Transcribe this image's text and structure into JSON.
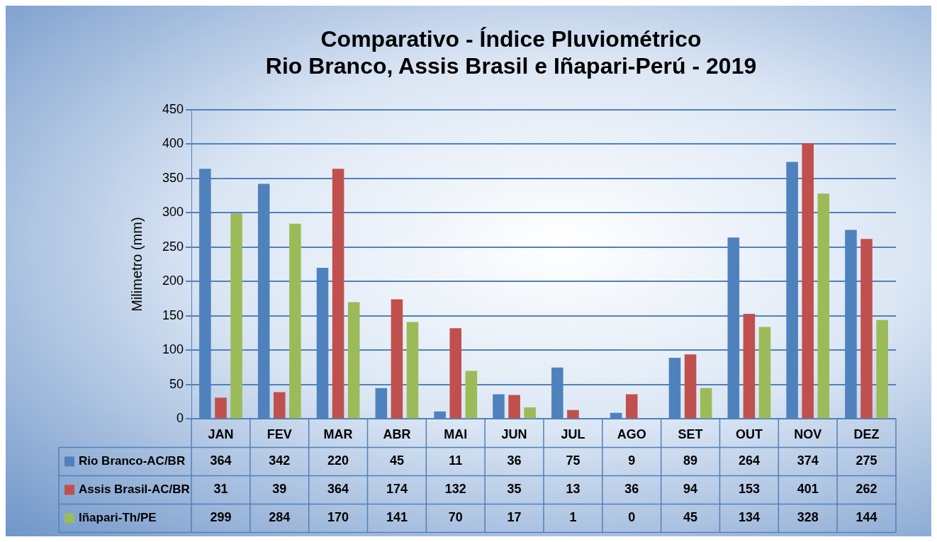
{
  "chart_data": {
    "type": "bar",
    "title": "Comparativo - Índice Pluviométrico\nRio Branco, Assis Brasil e Iñapari-Perú - 2019",
    "ylabel": "Milimetro (mm)",
    "categories": [
      "JAN",
      "FEV",
      "MAR",
      "ABR",
      "MAI",
      "JUN",
      "JUL",
      "AGO",
      "SET",
      "OUT",
      "NOV",
      "DEZ"
    ],
    "series": [
      {
        "name": "Rio Branco-AC/BR",
        "color": "#4f81bd",
        "values": [
          364,
          342,
          220,
          45,
          11,
          36,
          75,
          9,
          89,
          264,
          374,
          275
        ]
      },
      {
        "name": "Assis Brasil-AC/BR",
        "color": "#c0504d",
        "values": [
          31,
          39,
          364,
          174,
          132,
          35,
          13,
          36,
          94,
          153,
          401,
          262
        ]
      },
      {
        "name": "Iñapari-Th/PE",
        "color": "#9bbb59",
        "values": [
          299,
          284,
          170,
          141,
          70,
          17,
          1,
          0,
          45,
          134,
          328,
          144
        ]
      }
    ],
    "ylim": [
      0,
      450
    ],
    "yticks": [
      0,
      50,
      100,
      150,
      200,
      250,
      300,
      350,
      400,
      450
    ],
    "grid": "y",
    "legend": "bottom",
    "data_labels": true
  }
}
